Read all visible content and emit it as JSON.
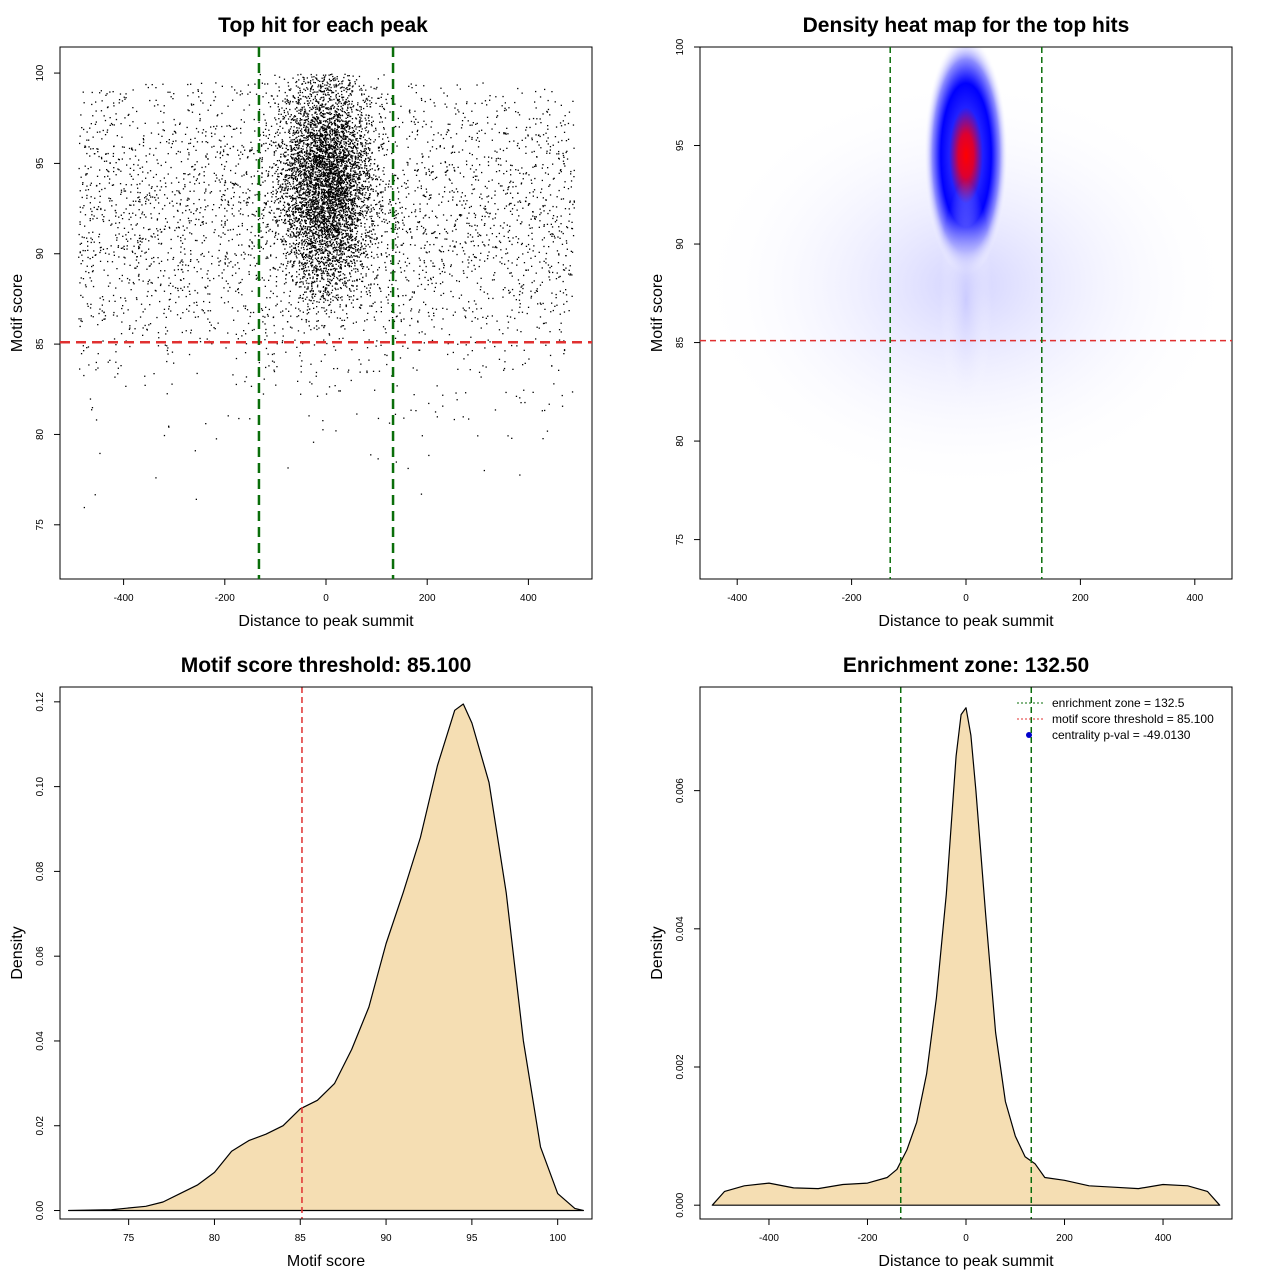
{
  "colors": {
    "points": "#000000",
    "threshold_line": "#e03030",
    "zone_line": "#0a6e0a",
    "density_fill": "#f5deb3",
    "density_stroke": "#000000",
    "heat_low": "#ffffff",
    "heat_mid": "#0000ff",
    "heat_high": "#ff0000",
    "legend_point": "#0000cc"
  },
  "chart_data": [
    {
      "id": "scatter",
      "type": "scatter",
      "title": "Top hit for each peak",
      "xlabel": "Distance to peak summit",
      "ylabel": "Motif score",
      "xlim": [
        -500,
        500
      ],
      "ylim": [
        72,
        101
      ],
      "xticks": [
        -400,
        -200,
        0,
        200,
        400
      ],
      "yticks": [
        75,
        80,
        85,
        90,
        95,
        100
      ],
      "threshold_y": 85.1,
      "zone_x": [
        -132.5,
        132.5
      ],
      "grid": false,
      "legend": "none"
    },
    {
      "id": "heatmap",
      "type": "heatmap",
      "title": "Density heat map for the top hits",
      "xlabel": "Distance to peak summit",
      "ylabel": "Motif score",
      "xlim": [
        -500,
        500
      ],
      "ylim": [
        73,
        100
      ],
      "xticks": [
        -400,
        -200,
        0,
        200,
        400
      ],
      "yticks": [
        75,
        80,
        85,
        90,
        95,
        100
      ],
      "threshold_y": 85.1,
      "zone_x": [
        -132.5,
        132.5
      ],
      "peak": {
        "x": 0,
        "y": 94.5
      },
      "grid": false,
      "legend": "none"
    },
    {
      "id": "score-density",
      "type": "area",
      "title": "Motif score threshold: 85.100",
      "xlabel": "Motif score",
      "ylabel": "Density",
      "xlim": [
        71,
        102
      ],
      "ylim": [
        -0.002,
        0.1235
      ],
      "xticks": [
        75,
        80,
        85,
        90,
        95,
        100
      ],
      "yticks": [
        "0.00",
        "0.02",
        "0.04",
        "0.06",
        "0.08",
        "0.10",
        "0.12"
      ],
      "threshold_x": 85.1,
      "x": [
        71.5,
        74,
        76,
        77,
        78,
        79,
        80,
        81,
        82,
        83,
        84,
        85,
        86,
        87,
        88,
        89,
        90,
        91,
        92,
        93,
        94,
        94.5,
        95,
        96,
        97,
        98,
        99,
        100,
        101,
        101.5
      ],
      "y": [
        0.0,
        0.0002,
        0.001,
        0.002,
        0.004,
        0.006,
        0.009,
        0.014,
        0.0165,
        0.018,
        0.02,
        0.024,
        0.026,
        0.03,
        0.038,
        0.048,
        0.063,
        0.075,
        0.088,
        0.105,
        0.118,
        0.1195,
        0.115,
        0.101,
        0.075,
        0.04,
        0.015,
        0.004,
        0.0005,
        0.0
      ],
      "grid": false,
      "legend": "none"
    },
    {
      "id": "distance-density",
      "type": "area",
      "title": "Enrichment zone: 132.50",
      "xlabel": "Distance to peak summit",
      "ylabel": "Density",
      "xlim": [
        -540,
        540
      ],
      "ylim": [
        -0.0002,
        0.0075
      ],
      "xticks": [
        -400,
        -200,
        0,
        200,
        400
      ],
      "yticks": [
        "0.000",
        "0.002",
        "0.004",
        "0.006"
      ],
      "zone_x": [
        -132.5,
        132.5
      ],
      "x": [
        -515,
        -490,
        -450,
        -400,
        -350,
        -300,
        -250,
        -200,
        -160,
        -140,
        -120,
        -100,
        -80,
        -60,
        -40,
        -20,
        -10,
        0,
        10,
        20,
        40,
        60,
        80,
        100,
        120,
        140,
        160,
        200,
        250,
        300,
        350,
        400,
        450,
        490,
        515
      ],
      "y": [
        0.0,
        0.0002,
        0.00028,
        0.00032,
        0.00025,
        0.00024,
        0.0003,
        0.00032,
        0.0004,
        0.00052,
        0.0008,
        0.0012,
        0.0019,
        0.003,
        0.0045,
        0.0065,
        0.0071,
        0.0072,
        0.0068,
        0.006,
        0.0042,
        0.0025,
        0.0015,
        0.001,
        0.0007,
        0.0006,
        0.0004,
        0.00036,
        0.00028,
        0.00026,
        0.00024,
        0.0003,
        0.00028,
        0.0002,
        0.0
      ],
      "legend": "top-right",
      "legend_entries": [
        {
          "label": "enrichment zone = 132.5",
          "kind": "zone"
        },
        {
          "label": "motif score threshold = 85.100",
          "kind": "threshold"
        },
        {
          "label": "centrality p-val = -49.0130",
          "kind": "point"
        }
      ],
      "grid": false
    }
  ]
}
